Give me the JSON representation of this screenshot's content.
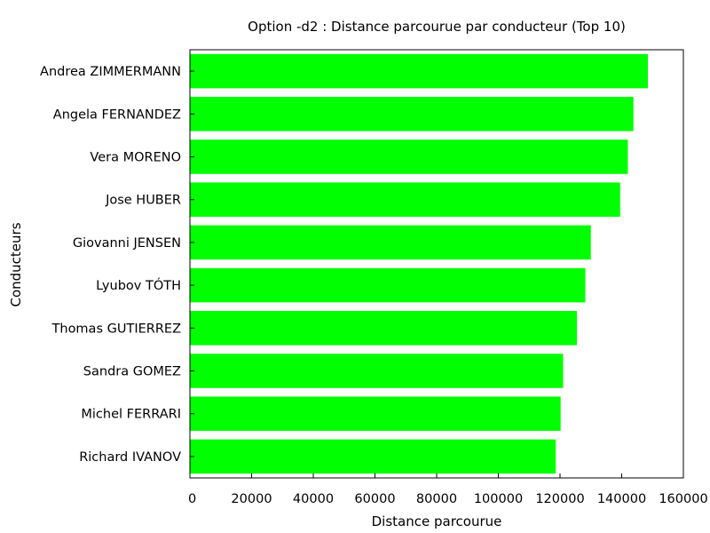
{
  "chart_data": {
    "type": "bar",
    "orientation": "horizontal",
    "title": "Option -d2 : Distance parcourue par conducteur (Top 10)",
    "xlabel": "Distance parcourue",
    "ylabel": "Conducteurs",
    "categories": [
      "Andrea ZIMMERMANN",
      "Angela FERNANDEZ",
      "Vera MORENO",
      "Jose HUBER",
      "Giovanni JENSEN",
      "Lyubov TÓTH",
      "Thomas GUTIERREZ",
      "Sandra GOMEZ",
      "Michel FERRARI",
      "Richard IVANOV"
    ],
    "values": [
      148500,
      143800,
      142000,
      139500,
      130000,
      128200,
      125500,
      121000,
      120200,
      118600
    ],
    "xlim": [
      0,
      160000
    ],
    "xticks": [
      0,
      20000,
      40000,
      60000,
      80000,
      100000,
      120000,
      140000,
      160000
    ],
    "xtick_labels": [
      "0",
      "20000",
      "40000",
      "60000",
      "80000",
      "100000",
      "120000",
      "140000",
      "160000"
    ],
    "bar_color": "#00ff00",
    "grid": false,
    "legend": "none"
  }
}
